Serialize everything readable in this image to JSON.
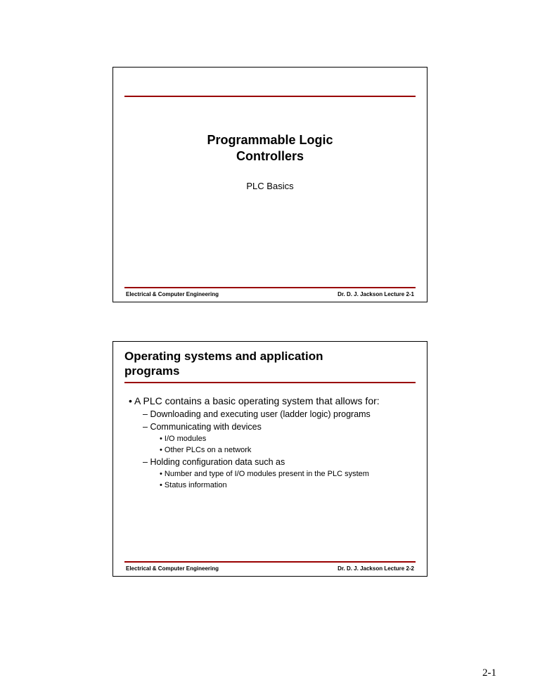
{
  "page": {
    "number": "2-1",
    "background_color": "#ffffff",
    "accent_color": "#990000",
    "border_color": "#000000"
  },
  "slide1": {
    "title_line1": "Programmable Logic",
    "title_line2": "Controllers",
    "subtitle": "PLC Basics",
    "footer_left": "Electrical & Computer Engineering",
    "footer_right": "Dr. D. J. Jackson  Lecture 2-1"
  },
  "slide2": {
    "title_line1": "Operating systems and application",
    "title_line2": "programs",
    "bullets": {
      "b1": "A PLC contains a basic operating system that allows for:",
      "b1a": "Downloading and executing user (ladder logic) programs",
      "b1b": "Communicating with devices",
      "b1b_i": "I/O modules",
      "b1b_ii": "Other PLCs on a network",
      "b1c": "Holding configuration data such as",
      "b1c_i": "Number and type of I/O modules present in the PLC system",
      "b1c_ii": "Status information"
    },
    "footer_left": "Electrical & Computer Engineering",
    "footer_right": "Dr. D. J. Jackson  Lecture 2-2"
  }
}
